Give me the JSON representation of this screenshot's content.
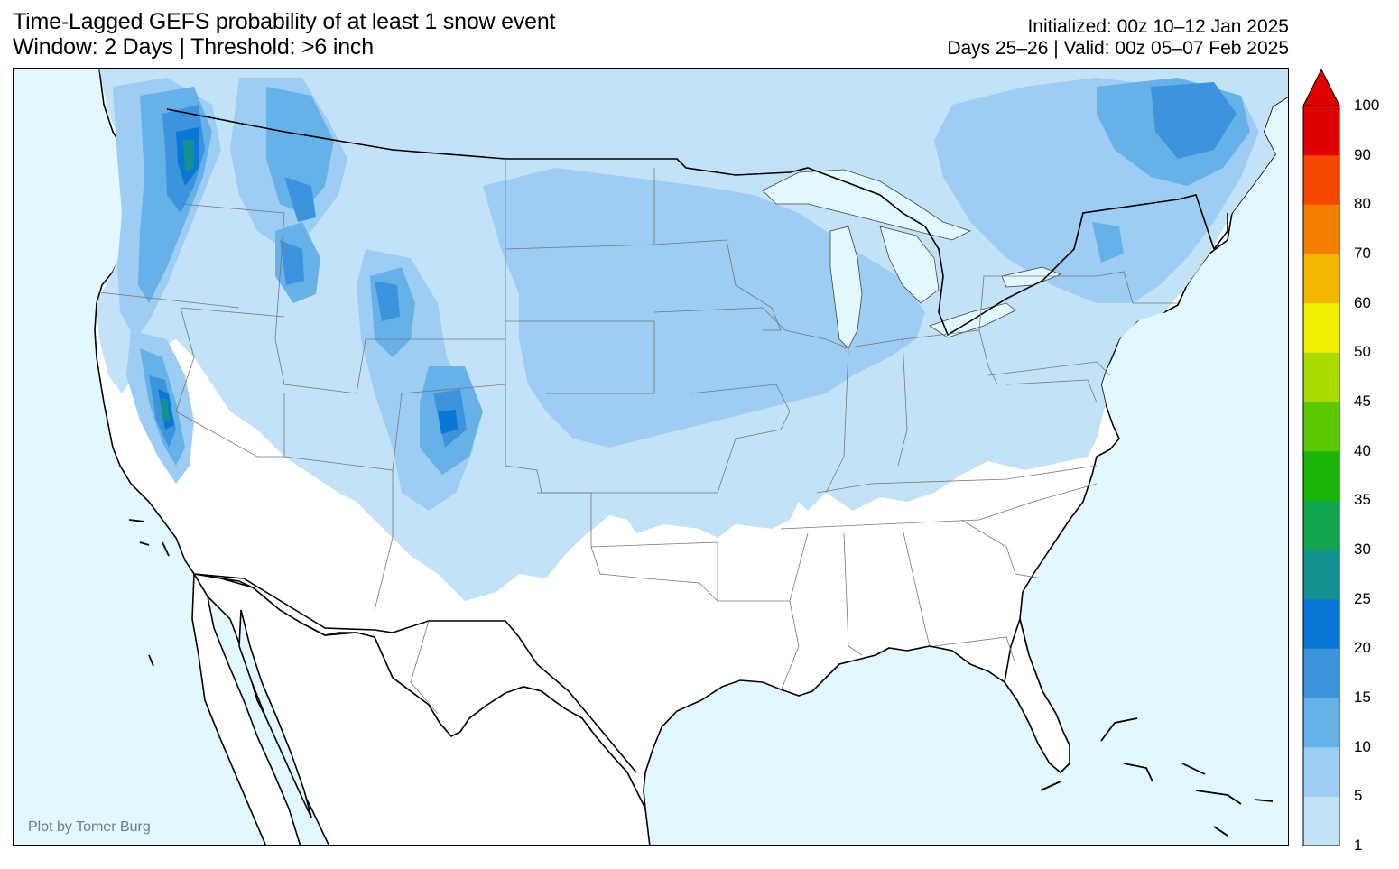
{
  "title": {
    "line1": "Time-Lagged GEFS probability of at least 1 snow event",
    "line2": "Window: 2 Days | Threshold: >6 inch"
  },
  "meta": {
    "initialized": "Initialized: 00z 10–12 Jan 2025",
    "valid": "Days 25–26 | Valid: 00z 05–07 Feb 2025"
  },
  "credit": "Plot by Tomer Burg",
  "colors": {
    "ocean": "#e2f8ff",
    "land": "#ffffff",
    "lakes": "#e2f8ff"
  },
  "colorbar": {
    "ticks": [
      "1",
      "5",
      "10",
      "15",
      "20",
      "25",
      "30",
      "35",
      "40",
      "45",
      "50",
      "60",
      "70",
      "80",
      "90",
      "100"
    ],
    "colors": [
      "#c2e2f8",
      "#9dcdf2",
      "#66b1e8",
      "#3b94dc",
      "#0a76d6",
      "#13918f",
      "#11a64d",
      "#1ab507",
      "#5bc904",
      "#a9db00",
      "#f0f000",
      "#f5b800",
      "#f57f00",
      "#f54700",
      "#e00000"
    ],
    "extend": "max"
  }
}
